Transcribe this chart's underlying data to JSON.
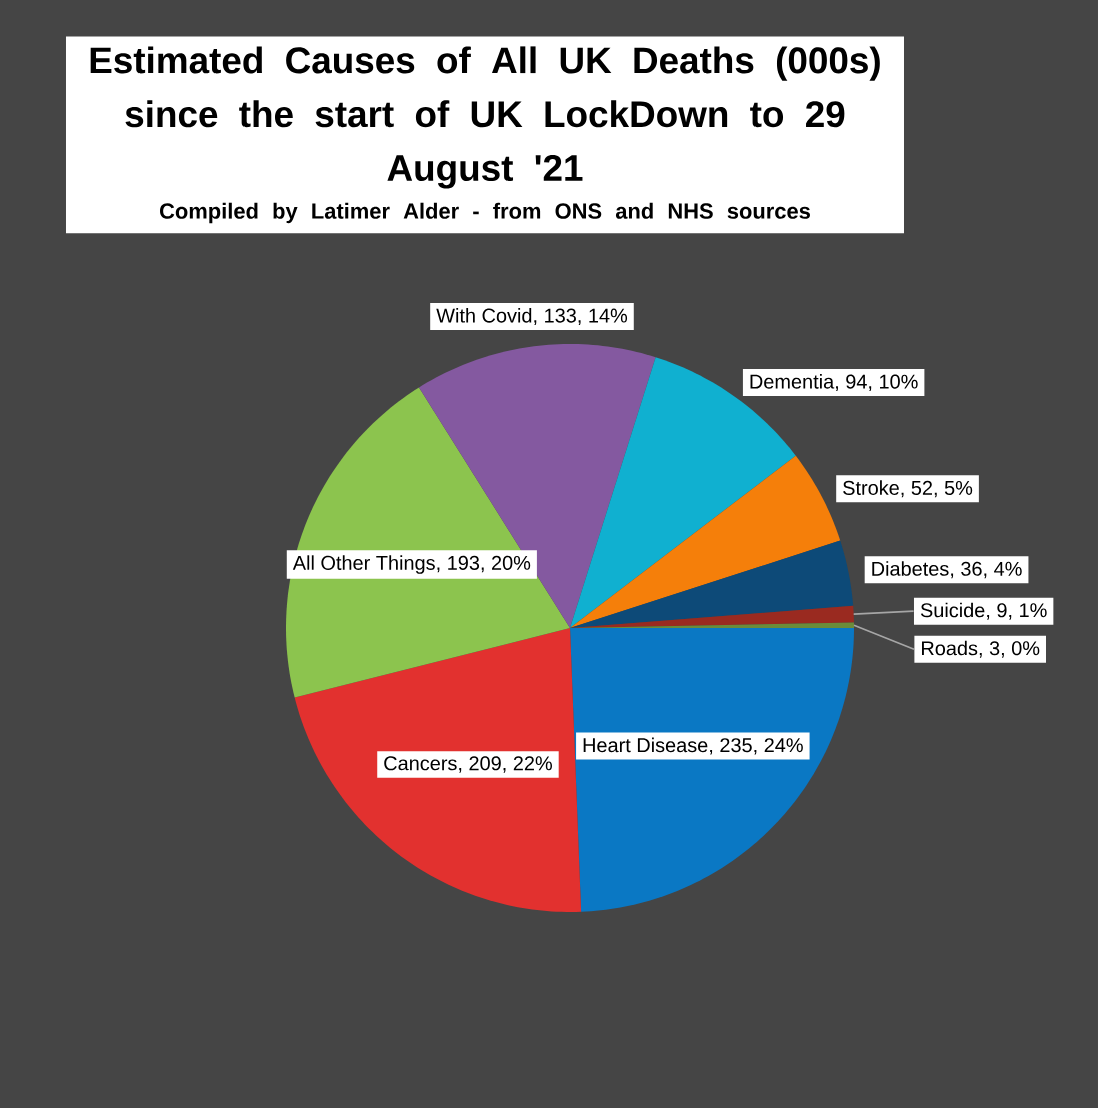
{
  "chart_data": {
    "type": "pie",
    "title": "Estimated Causes of All UK Deaths (000s) since the start of UK LockDown to 29 August '21",
    "subtitle": "Compiled by Latimer Alder - from ONS and NHS sources",
    "categories": [
      "Heart Disease",
      "Cancers",
      "All Other Things",
      "With Covid",
      "Dementia",
      "Stroke",
      "Diabetes",
      "Suicide",
      "Roads"
    ],
    "values": [
      235,
      209,
      193,
      133,
      94,
      52,
      36,
      9,
      3
    ],
    "value_labels": [
      ", 235, 24%",
      ", 209, 22%",
      ", 193, 20%",
      ", 133, 14%",
      ", 94, 10%",
      ", 52, 5%",
      ", 36, 4%",
      ", 9, 1%",
      ", 3, 0%"
    ],
    "colors": [
      "#0a78c4",
      "#e2312f",
      "#8cc44e",
      "#8459a0",
      "#10b0d0",
      "#f57f0a",
      "#0d4a78",
      "#9a2a20",
      "#6b8c3a"
    ]
  }
}
